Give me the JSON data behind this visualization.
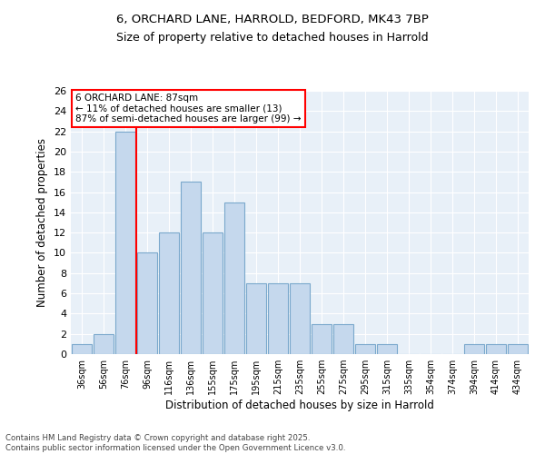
{
  "title_line1": "6, ORCHARD LANE, HARROLD, BEDFORD, MK43 7BP",
  "title_line2": "Size of property relative to detached houses in Harrold",
  "xlabel": "Distribution of detached houses by size in Harrold",
  "ylabel": "Number of detached properties",
  "categories": [
    "36sqm",
    "56sqm",
    "76sqm",
    "96sqm",
    "116sqm",
    "136sqm",
    "155sqm",
    "175sqm",
    "195sqm",
    "215sqm",
    "235sqm",
    "255sqm",
    "275sqm",
    "295sqm",
    "315sqm",
    "335sqm",
    "354sqm",
    "374sqm",
    "394sqm",
    "414sqm",
    "434sqm"
  ],
  "values": [
    1,
    2,
    22,
    10,
    12,
    17,
    12,
    15,
    7,
    7,
    7,
    3,
    3,
    1,
    1,
    0,
    0,
    0,
    1,
    1,
    1
  ],
  "bar_color": "#c5d8ed",
  "bar_edge_color": "#7aa8cc",
  "red_line_x": 2.5,
  "annotation_text": "6 ORCHARD LANE: 87sqm\n← 11% of detached houses are smaller (13)\n87% of semi-detached houses are larger (99) →",
  "annotation_box_color": "white",
  "annotation_box_edge_color": "red",
  "ylim": [
    0,
    26
  ],
  "yticks": [
    0,
    2,
    4,
    6,
    8,
    10,
    12,
    14,
    16,
    18,
    20,
    22,
    24,
    26
  ],
  "background_color": "#e8f0f8",
  "grid_color": "white",
  "footer_line1": "Contains HM Land Registry data © Crown copyright and database right 2025.",
  "footer_line2": "Contains public sector information licensed under the Open Government Licence v3.0."
}
